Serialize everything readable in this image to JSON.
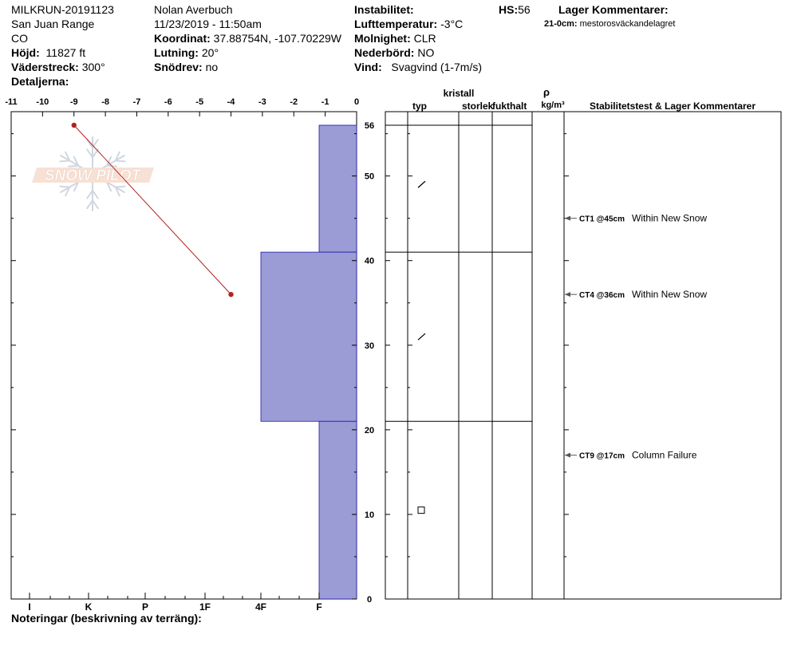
{
  "header": {
    "col1": [
      "MILKRUN-20191123",
      "San Juan Range",
      "CO"
    ],
    "hojd_label": "Höjd:",
    "hojd_value": "11827 ft",
    "vaderstreck_label": "Väderstreck:",
    "vaderstreck_value": "300°",
    "detaljerna_label": "Detaljerna:",
    "observer": "Nolan Averbuch",
    "datetime": "11/23/2019 - 11:50am",
    "koordinat_label": "Koordinat:",
    "koordinat_value": "37.88754N, -107.70229W",
    "lutning_label": "Lutning:",
    "lutning_value": "20°",
    "snodrev_label": "Snödrev:",
    "snodrev_value": "no",
    "instabilitet_label": "Instabilitet:",
    "lufttemp_label": "Lufttemperatur:",
    "lufttemp_value": "-3°C",
    "molnighet_label": "Molnighet:",
    "molnighet_value": "CLR",
    "nederbord_label": "Nederbörd:",
    "nederbord_value": "NO",
    "vind_label": "Vind:",
    "vind_value": "Svagvind (1-7m/s)",
    "hs_label": "HS:",
    "hs_value": "56",
    "lager_label": "Lager Kommentarer:",
    "lager_comment_depth": "21-0cm:",
    "lager_comment_text": "mestorosväckandelagret"
  },
  "footer": {
    "noteringar": "Noteringar (beskrivning av terräng):"
  },
  "columns": {
    "kristall": "kristall",
    "typ": "typ",
    "storlek": "storlek",
    "fukthalt": "fukthalt",
    "rho": "ρ",
    "density_unit": "kg/m³",
    "stability": "Stabilitetstest & Lager Kommentarer"
  },
  "logo_text": "SNOW PILOT",
  "colors": {
    "hardness_fill": "#9b9bd6",
    "hardness_stroke": "#1a1aa8",
    "temp_line": "#b22222"
  },
  "chart_data": {
    "type": "snow-profile",
    "temperature_axis": {
      "ticks": [
        -11,
        -10,
        -9,
        -8,
        -7,
        -6,
        -5,
        -4,
        -3,
        -2,
        -1,
        0
      ],
      "range": [
        -11,
        0
      ]
    },
    "depth_axis": {
      "ticks": [
        0,
        10,
        20,
        30,
        40,
        50,
        56
      ],
      "range": [
        0,
        56
      ]
    },
    "hardness_axis": {
      "labels": [
        "I",
        "K",
        "P",
        "1F",
        "4F",
        "F"
      ]
    },
    "temperature_profile": [
      {
        "depth": 56,
        "temp": -9
      },
      {
        "depth": 36,
        "temp": -4
      }
    ],
    "hardness_layers": [
      {
        "top": 56,
        "bottom": 41,
        "hardness": "F"
      },
      {
        "top": 41,
        "bottom": 21,
        "hardness": "4F"
      },
      {
        "top": 21,
        "bottom": 0,
        "hardness": "F"
      }
    ],
    "layer_boundaries": [
      56,
      41,
      21
    ],
    "grain_symbols": [
      {
        "depth": 49,
        "type": "slash"
      },
      {
        "depth": 31,
        "type": "slash"
      },
      {
        "depth": 10.5,
        "type": "square"
      }
    ],
    "stability_tests": [
      {
        "depth": 45,
        "code": "CT1 @45cm",
        "comment": "Within New Snow"
      },
      {
        "depth": 36,
        "code": "CT4 @36cm",
        "comment": "Within New Snow"
      },
      {
        "depth": 17,
        "code": "CT9 @17cm",
        "comment": "Column Failure"
      }
    ]
  }
}
